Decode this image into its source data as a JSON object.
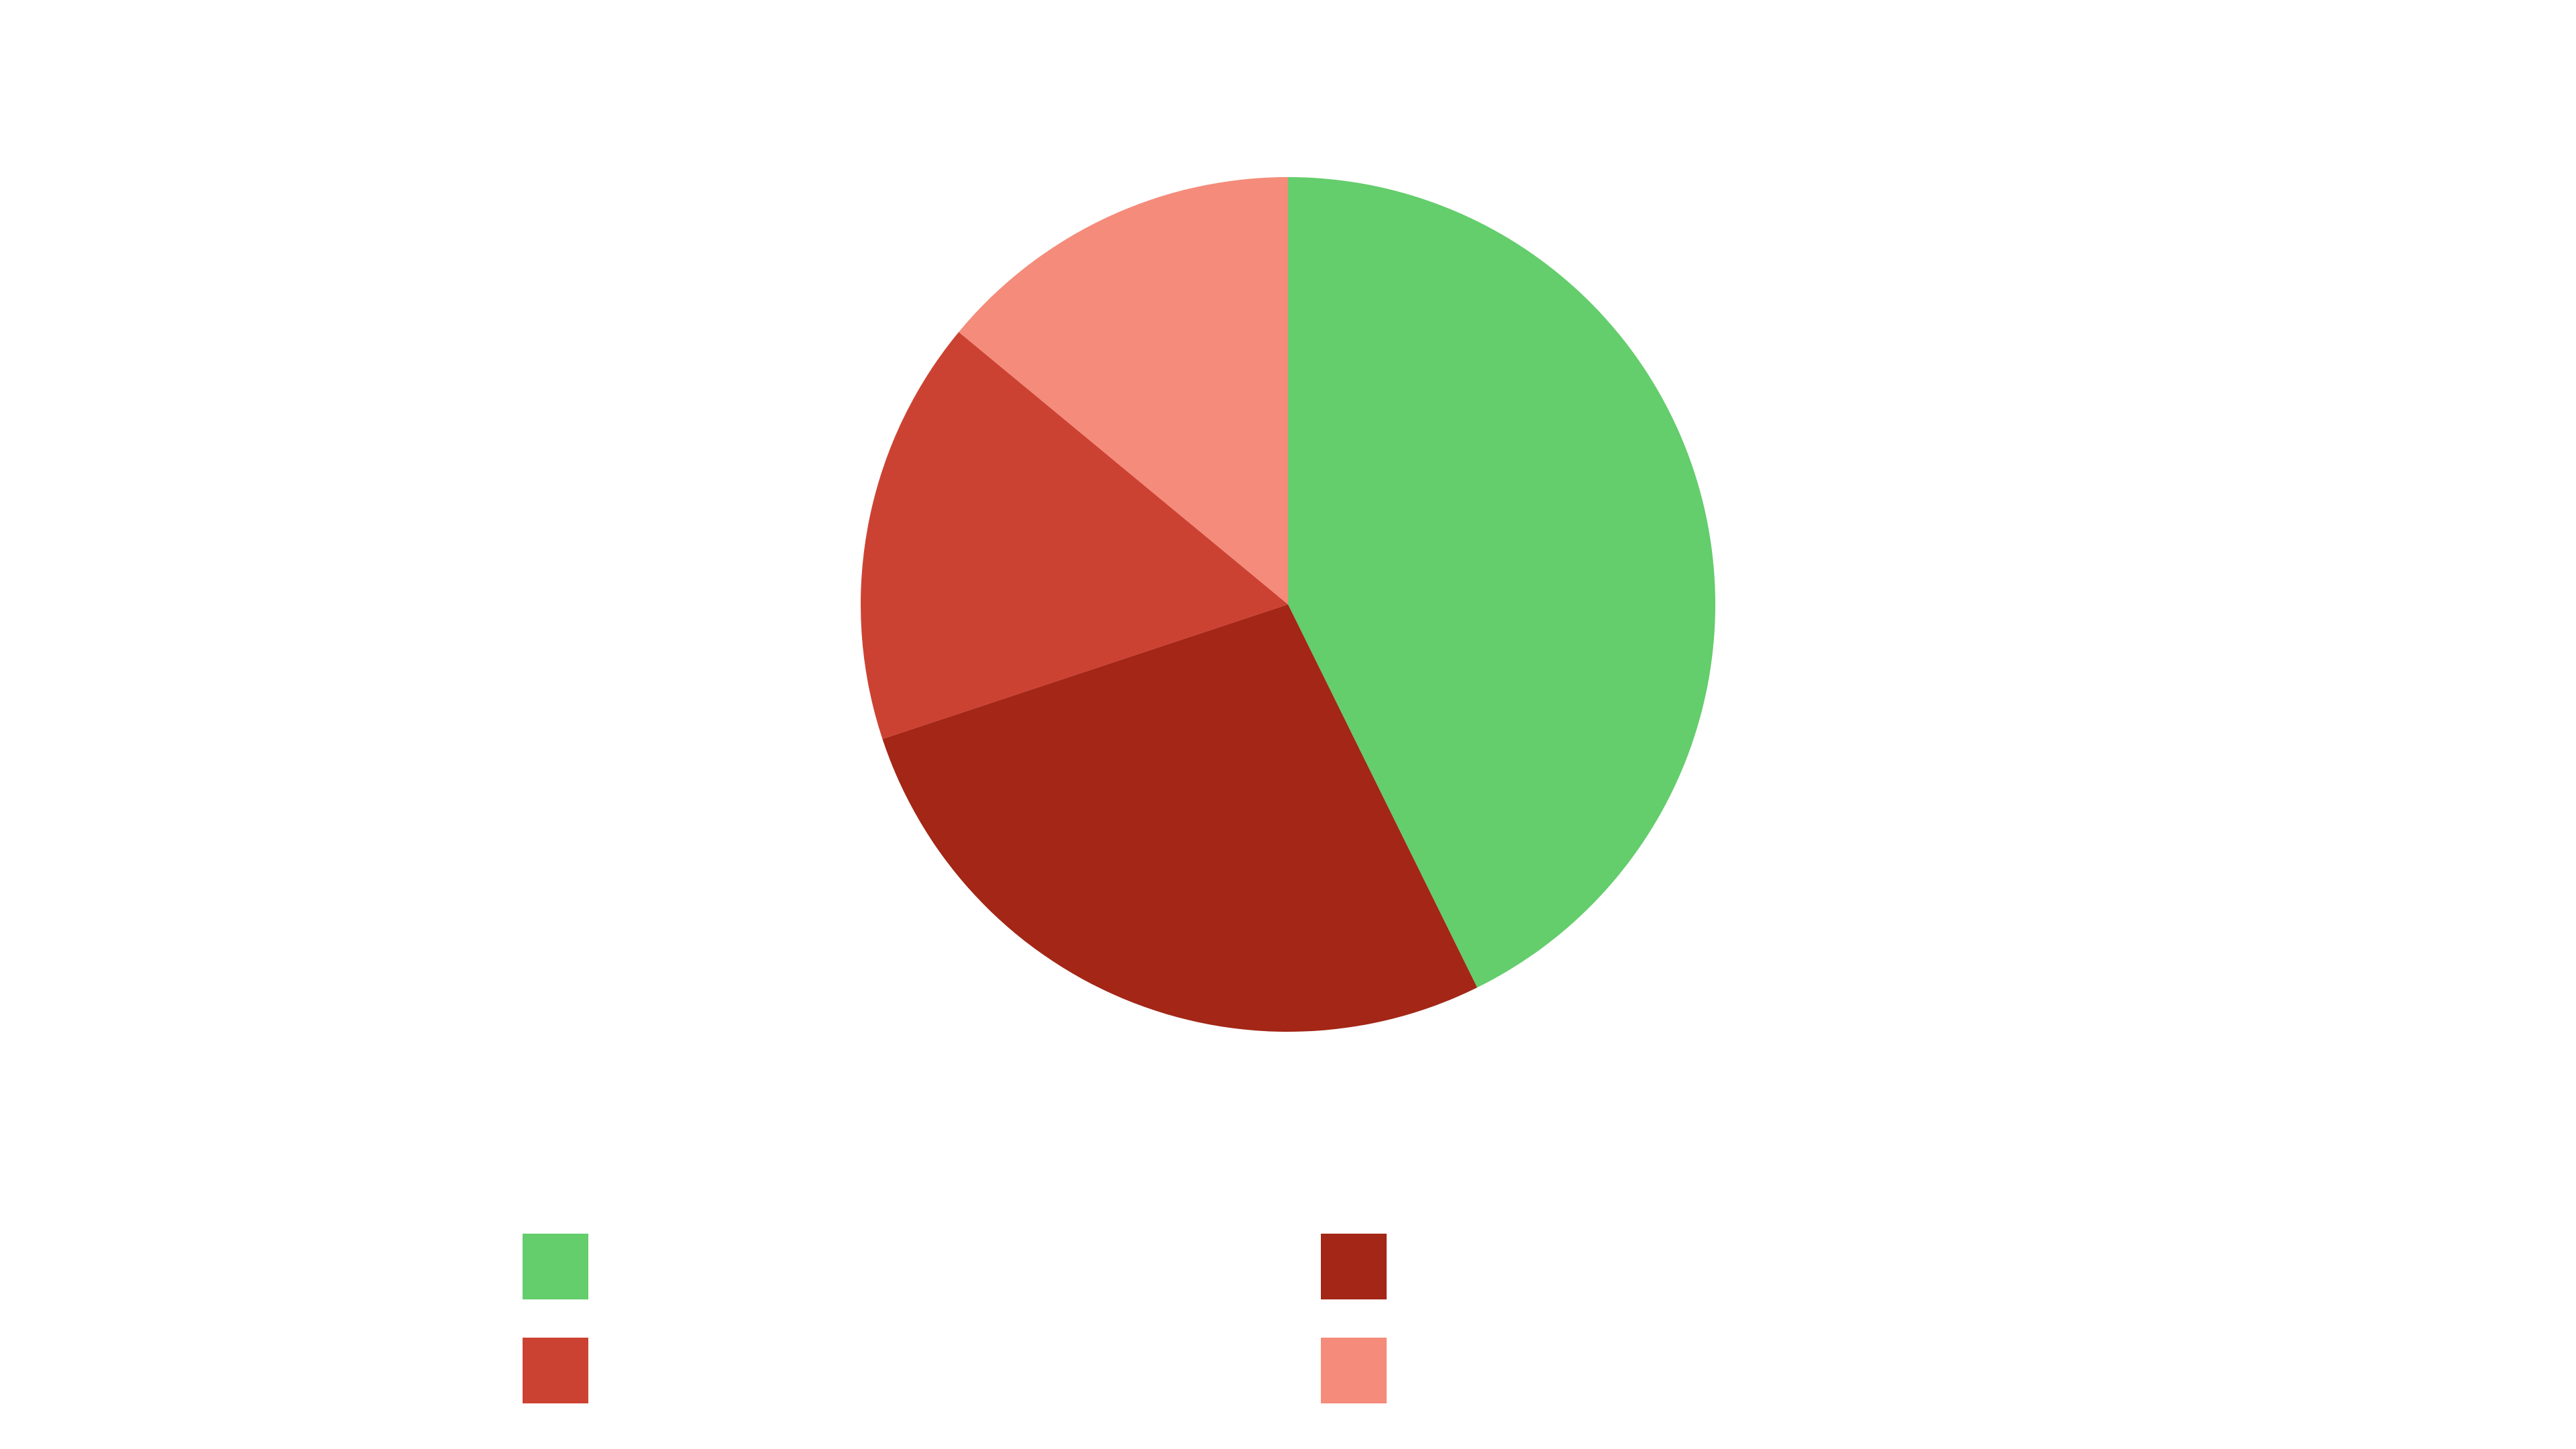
{
  "chart_data": {
    "type": "pie",
    "values": [
      42.7,
      27.2,
      16.1,
      14.0
    ],
    "colors": [
      "#64cd6c",
      "#a32616",
      "#cc4232",
      "#f58b7a"
    ],
    "legend": "bottom"
  }
}
